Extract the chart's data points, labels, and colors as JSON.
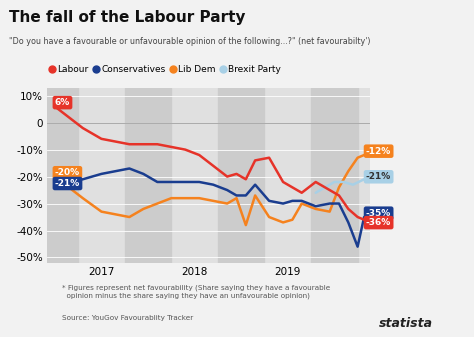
{
  "title": "The fall of the Labour Party",
  "subtitle": "\"Do you have a favourable or unfavourable opinion of the following...?\" (net favourabilty')",
  "ylim": [
    -52,
    13
  ],
  "yticks": [
    10,
    0,
    -10,
    -20,
    -30,
    -40,
    -50
  ],
  "background_color": "#f2f2f2",
  "plot_bg_color": "#e0e0e0",
  "stripe_color": "#cccccc",
  "labour_color": "#e63329",
  "conservatives_color": "#1a3d8f",
  "libdem_color": "#f5821e",
  "brexit_color": "#a8d0e6",
  "labour": {
    "x": [
      2016.5,
      2016.65,
      2016.8,
      2017.0,
      2017.15,
      2017.3,
      2017.45,
      2017.6,
      2017.75,
      2017.9,
      2018.05,
      2018.2,
      2018.35,
      2018.45,
      2018.55,
      2018.65,
      2018.8,
      2018.95,
      2019.05,
      2019.15,
      2019.3,
      2019.45,
      2019.55,
      2019.65,
      2019.75,
      2019.82
    ],
    "y": [
      6,
      2,
      -2,
      -6,
      -7,
      -8,
      -8,
      -8,
      -9,
      -10,
      -12,
      -16,
      -20,
      -19,
      -21,
      -14,
      -13,
      -22,
      -24,
      -26,
      -22,
      -25,
      -27,
      -32,
      -35,
      -36
    ]
  },
  "conservatives": {
    "x": [
      2016.5,
      2016.65,
      2016.8,
      2017.0,
      2017.15,
      2017.3,
      2017.45,
      2017.6,
      2017.75,
      2017.9,
      2018.05,
      2018.2,
      2018.35,
      2018.45,
      2018.55,
      2018.65,
      2018.8,
      2018.95,
      2019.05,
      2019.15,
      2019.3,
      2019.45,
      2019.55,
      2019.65,
      2019.75,
      2019.82
    ],
    "y": [
      -21,
      -22,
      -21,
      -19,
      -18,
      -17,
      -19,
      -22,
      -22,
      -22,
      -22,
      -23,
      -25,
      -27,
      -27,
      -23,
      -29,
      -30,
      -29,
      -29,
      -31,
      -30,
      -30,
      -37,
      -46,
      -35
    ]
  },
  "libdem": {
    "x": [
      2016.5,
      2016.65,
      2016.8,
      2017.0,
      2017.15,
      2017.3,
      2017.45,
      2017.6,
      2017.75,
      2017.9,
      2018.05,
      2018.2,
      2018.35,
      2018.45,
      2018.55,
      2018.65,
      2018.8,
      2018.95,
      2019.05,
      2019.15,
      2019.3,
      2019.45,
      2019.55,
      2019.65,
      2019.75,
      2019.82
    ],
    "y": [
      -20,
      -24,
      -28,
      -33,
      -34,
      -35,
      -32,
      -30,
      -28,
      -28,
      -28,
      -29,
      -30,
      -28,
      -38,
      -27,
      -35,
      -37,
      -36,
      -30,
      -32,
      -33,
      -24,
      -18,
      -13,
      -12
    ]
  },
  "brexit": {
    "x": [
      2019.3,
      2019.4,
      2019.5,
      2019.6,
      2019.7,
      2019.82
    ],
    "y": [
      -26,
      -24,
      -22,
      -22,
      -23,
      -21
    ]
  },
  "xtick_positions": [
    2017.0,
    2018.0,
    2019.0
  ],
  "xtick_labels": [
    "2017",
    "2018",
    "2019"
  ],
  "footnote": "* Figures represent net favourability (Share saying they have a favourable\n  opinion minus the share saying they have an unfavourable opinion)",
  "source": "Source: YouGov Favourablity Tracker",
  "stripe_ranges": [
    [
      2016.42,
      2016.75
    ],
    [
      2017.25,
      2017.75
    ],
    [
      2018.25,
      2018.75
    ],
    [
      2019.25,
      2019.75
    ]
  ]
}
